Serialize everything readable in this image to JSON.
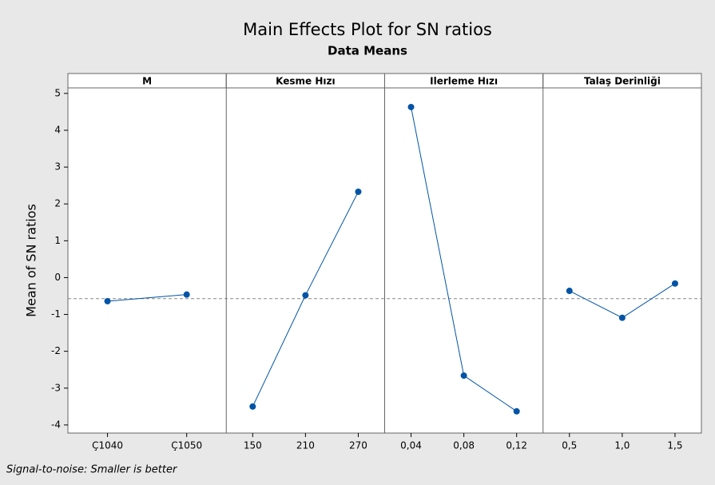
{
  "chart_data": {
    "type": "line",
    "title": "Main Effects Plot for SN ratios",
    "subtitle": "Data Means",
    "ylabel": "Mean of SN ratios",
    "footnote": "Signal-to-noise: Smaller is better",
    "ylim": [
      -4.22,
      5.15
    ],
    "yticks": [
      -4,
      -3,
      -2,
      -1,
      0,
      1,
      2,
      3,
      4,
      5
    ],
    "reference_line": -0.57,
    "color": "#0054a6",
    "panels": [
      {
        "name": "M",
        "categories": [
          "Ç1040",
          "Ç1050"
        ],
        "values": [
          -0.64,
          -0.46
        ]
      },
      {
        "name": "Kesme Hızı",
        "categories": [
          "150",
          "210",
          "270"
        ],
        "values": [
          -3.5,
          -0.48,
          2.33
        ]
      },
      {
        "name": "Ilerleme Hızı",
        "categories": [
          "0,04",
          "0,08",
          "0,12"
        ],
        "values": [
          4.63,
          -2.66,
          -3.63
        ]
      },
      {
        "name": "Talaş Derinliği",
        "categories": [
          "0,5",
          "1,0",
          "1,5"
        ],
        "values": [
          -0.36,
          -1.09,
          -0.16
        ]
      }
    ]
  }
}
